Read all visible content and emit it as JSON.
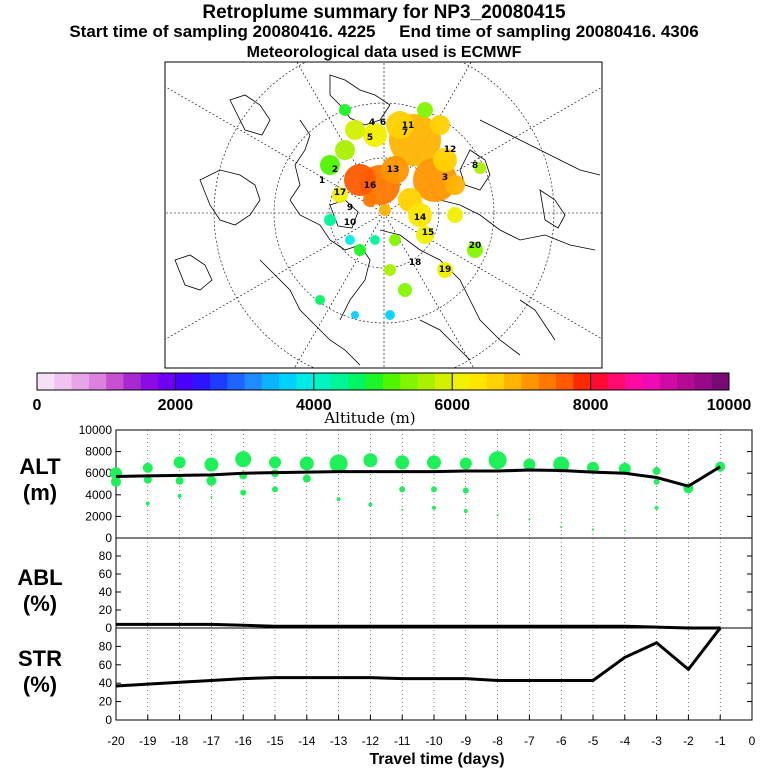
{
  "header": {
    "title": "Retroplume summary for NP3_20080415",
    "start": "Start time of sampling 20080416.  4225",
    "end": "End time of sampling 20080416.  4306",
    "met": "Meteorological data used is ECMWF"
  },
  "colorbar": {
    "colors": [
      "#f5e1f5",
      "#f0c3f0",
      "#e6a5e6",
      "#dc82dc",
      "#c850d2",
      "#aa28d2",
      "#8c0ae6",
      "#6e00f5",
      "#4b00ff",
      "#2d14ff",
      "#1e3cff",
      "#1e64ff",
      "#1e8cff",
      "#0ab4ff",
      "#00d2ff",
      "#00ebe6",
      "#00f5c3",
      "#00f596",
      "#00f564",
      "#1ef528",
      "#50f500",
      "#82f500",
      "#aaf000",
      "#d2f000",
      "#f0f000",
      "#ffe600",
      "#ffd200",
      "#ffb400",
      "#ff9600",
      "#ff7800",
      "#ff5a00",
      "#ff2800",
      "#ff0a32",
      "#ff0a6e",
      "#ff0aa0",
      "#f00ab4",
      "#d20aa5",
      "#b40a96",
      "#960a87",
      "#780a78"
    ],
    "tick_labels": [
      "0",
      "2000",
      "4000",
      "6000",
      "8000",
      "10000"
    ],
    "label": "Altitude (m)"
  },
  "map": {
    "plume_labels": [
      "1",
      "2",
      "3",
      "4",
      "5",
      "6",
      "7",
      "8",
      "9",
      "10",
      "11",
      "12",
      "13",
      "14",
      "15",
      "16",
      "17",
      "18",
      "19",
      "20"
    ]
  },
  "panels": {
    "alt_label_1": "ALT",
    "alt_label_2": "(m)",
    "abl_label_1": "ABL",
    "abl_label_2": "(%)",
    "str_label_1": "STR",
    "str_label_2": "(%)"
  },
  "chart_data": [
    {
      "type": "scatter+line",
      "title": "ALT (m)",
      "ylim": [
        0,
        10000
      ],
      "yticks": [
        0,
        2000,
        4000,
        6000,
        8000,
        10000
      ],
      "xlim": [
        -20,
        0
      ],
      "line": {
        "x": [
          -20,
          -19,
          -18,
          -17,
          -16,
          -15,
          -14,
          -13,
          -12,
          -11,
          -10,
          -9,
          -8,
          -7,
          -6,
          -5,
          -4,
          -3,
          -2,
          -1
        ],
        "y": [
          5700,
          5750,
          5800,
          5850,
          6000,
          6050,
          6100,
          6150,
          6150,
          6150,
          6150,
          6200,
          6200,
          6300,
          6250,
          6100,
          6000,
          5600,
          4800,
          6600
        ]
      },
      "dot_color": "#1ef05a"
    },
    {
      "type": "line",
      "title": "ABL (%)",
      "ylim": [
        0,
        100
      ],
      "yticks": [
        0,
        20,
        40,
        60,
        80
      ],
      "x": [
        -20,
        -19,
        -18,
        -17,
        -16,
        -15,
        -14,
        -13,
        -12,
        -11,
        -10,
        -9,
        -8,
        -7,
        -6,
        -5,
        -4,
        -3,
        -2,
        -1
      ],
      "y": [
        4,
        4,
        4,
        4,
        3,
        2,
        2,
        2,
        2,
        2,
        2,
        2,
        2,
        2,
        2,
        2,
        2,
        1,
        0,
        0
      ]
    },
    {
      "type": "line",
      "title": "STR (%)",
      "ylim": [
        0,
        100
      ],
      "yticks": [
        0,
        20,
        40,
        60,
        80
      ],
      "x": [
        -20,
        -19,
        -18,
        -17,
        -16,
        -15,
        -14,
        -13,
        -12,
        -11,
        -10,
        -9,
        -8,
        -7,
        -6,
        -5,
        -4,
        -3,
        -2,
        -1
      ],
      "y": [
        37,
        39,
        41,
        43,
        45,
        46,
        46,
        46,
        46,
        45,
        45,
        45,
        43,
        43,
        43,
        43,
        68,
        84,
        55,
        100
      ]
    }
  ],
  "xaxis": {
    "ticks": [
      "-20",
      "-19",
      "-18",
      "-17",
      "-16",
      "-15",
      "-14",
      "-13",
      "-12",
      "-11",
      "-10",
      "-9",
      "-8",
      "-7",
      "-6",
      "-5",
      "-4",
      "-3",
      "-2",
      "-1",
      "0"
    ],
    "label": "Travel time (days)"
  }
}
